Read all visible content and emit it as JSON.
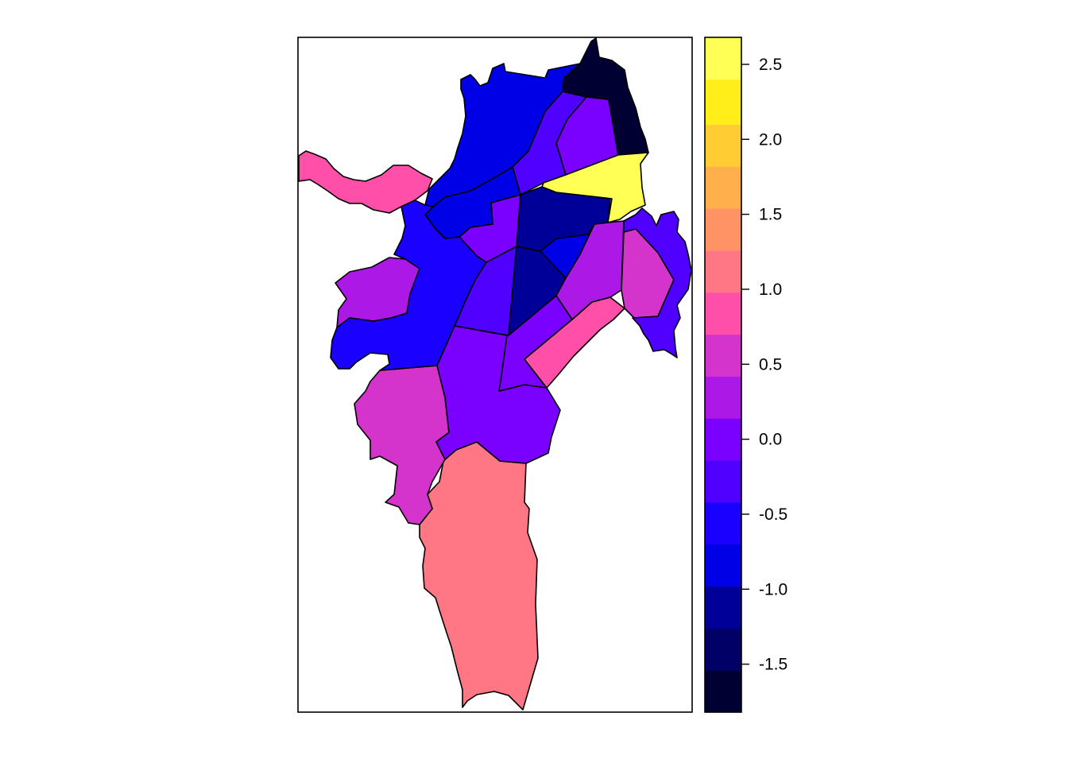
{
  "chart_data": {
    "type": "choropleth",
    "title": "",
    "legend": {
      "position": "right",
      "ticks": [
        "2.5",
        "2.0",
        "1.5",
        "1.0",
        "0.5",
        "0.0",
        "-0.5",
        "-1.0",
        "-1.5"
      ],
      "tick_values": [
        2.5,
        2.0,
        1.5,
        1.0,
        0.5,
        0.0,
        -0.5,
        -1.0,
        -1.5
      ],
      "range": [
        -1.82,
        2.68
      ],
      "bins": [
        {
          "from": -1.82,
          "to": -1.54,
          "color": "#000033"
        },
        {
          "from": -1.54,
          "to": -1.26,
          "color": "#000066"
        },
        {
          "from": -1.26,
          "to": -0.98,
          "color": "#000099"
        },
        {
          "from": -0.98,
          "to": -0.7,
          "color": "#0000E6"
        },
        {
          "from": -0.7,
          "to": -0.42,
          "color": "#1A00FF"
        },
        {
          "from": -0.42,
          "to": -0.14,
          "color": "#4F00FF"
        },
        {
          "from": -0.14,
          "to": 0.14,
          "color": "#7A00FF"
        },
        {
          "from": 0.14,
          "to": 0.42,
          "color": "#AC18E6"
        },
        {
          "from": 0.42,
          "to": 0.7,
          "color": "#D433CC"
        },
        {
          "from": 0.7,
          "to": 0.98,
          "color": "#FF4FA8"
        },
        {
          "from": 0.98,
          "to": 1.26,
          "color": "#FF7785"
        },
        {
          "from": 1.26,
          "to": 1.54,
          "color": "#FF9366"
        },
        {
          "from": 1.54,
          "to": 1.82,
          "color": "#FFB04D"
        },
        {
          "from": 1.82,
          "to": 2.1,
          "color": "#FFCD33"
        },
        {
          "from": 2.1,
          "to": 2.4,
          "color": "#FFEE1A"
        },
        {
          "from": 2.4,
          "to": 2.68,
          "color": "#FFFF55"
        }
      ]
    },
    "regions": [
      {
        "id": "r01",
        "value": -1.65,
        "color": "#000033"
      },
      {
        "id": "r02",
        "value": -0.85,
        "color": "#0000E6"
      },
      {
        "id": "r03",
        "value": -0.3,
        "color": "#4F00FF"
      },
      {
        "id": "r04",
        "value": 0.0,
        "color": "#7A00FF"
      },
      {
        "id": "r05",
        "value": 2.55,
        "color": "#FFFF55"
      },
      {
        "id": "r06",
        "value": 0.85,
        "color": "#FF4FA8"
      },
      {
        "id": "r07",
        "value": -0.9,
        "color": "#0000E6"
      },
      {
        "id": "r08",
        "value": -0.35,
        "color": "#4F00FF"
      },
      {
        "id": "r09",
        "value": -1.1,
        "color": "#000099"
      },
      {
        "id": "r10",
        "value": -0.1,
        "color": "#7A00FF"
      },
      {
        "id": "r11",
        "value": -1.2,
        "color": "#000099"
      },
      {
        "id": "r12",
        "value": -0.85,
        "color": "#0000E6"
      },
      {
        "id": "r13",
        "value": 0.3,
        "color": "#AC18E6"
      },
      {
        "id": "r14",
        "value": 0.55,
        "color": "#D433CC"
      },
      {
        "id": "r15",
        "value": -0.3,
        "color": "#4F00FF"
      },
      {
        "id": "r16",
        "value": -0.6,
        "color": "#1A00FF"
      },
      {
        "id": "r17",
        "value": 0.3,
        "color": "#AC18E6"
      },
      {
        "id": "r18",
        "value": -0.35,
        "color": "#4F00FF"
      },
      {
        "id": "r19",
        "value": 0.0,
        "color": "#7A00FF"
      },
      {
        "id": "r20",
        "value": 0.85,
        "color": "#FF4FA8"
      },
      {
        "id": "r21",
        "value": 0.0,
        "color": "#7A00FF"
      },
      {
        "id": "r22",
        "value": 0.55,
        "color": "#D433CC"
      },
      {
        "id": "r23",
        "value": 1.1,
        "color": "#FF7785"
      }
    ]
  }
}
